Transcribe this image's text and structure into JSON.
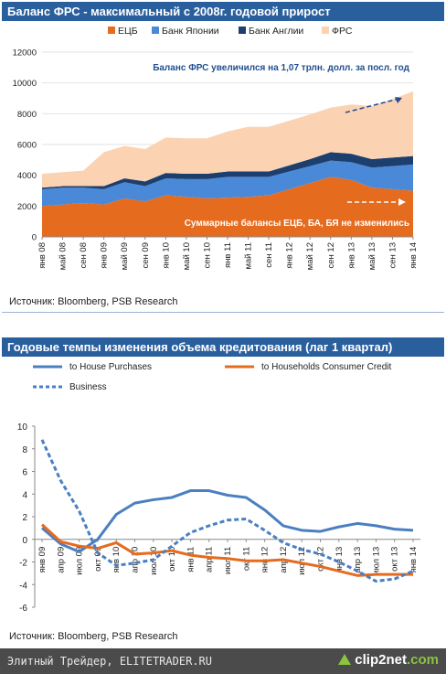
{
  "chart_data": [
    {
      "type": "area",
      "title": "Баланс ФРС - максимальный с 2008г. годовой прирост",
      "legend": [
        "ЕЦБ",
        "Банк Японии",
        "Банк Англии",
        "ФРС"
      ],
      "legend_position": "top",
      "ylim": [
        0,
        12000
      ],
      "yticks": [
        0,
        2000,
        4000,
        6000,
        8000,
        10000,
        12000
      ],
      "x_labels": [
        "янв 08",
        "май 08",
        "сен 08",
        "янв 09",
        "май 09",
        "сен 09",
        "янв 10",
        "май 10",
        "сен 10",
        "янв 11",
        "май 11",
        "сен 11",
        "янв 12",
        "май 12",
        "сен 12",
        "янв 13",
        "май 13",
        "сен 13",
        "янв 14"
      ],
      "series": [
        {
          "name": "ЕЦБ",
          "values": [
            2000,
            2100,
            2200,
            2100,
            2500,
            2300,
            2700,
            2600,
            2500,
            2550,
            2600,
            2700,
            3100,
            3500,
            3900,
            3700,
            3200,
            3100,
            3000
          ]
        },
        {
          "name": "Банк Японии",
          "values": [
            1100,
            1100,
            1000,
            1000,
            1050,
            1000,
            1100,
            1150,
            1250,
            1350,
            1300,
            1200,
            1150,
            1100,
            1050,
            1150,
            1300,
            1500,
            1700
          ]
        },
        {
          "name": "Банк Англии",
          "values": [
            100,
            100,
            100,
            200,
            250,
            300,
            350,
            350,
            350,
            350,
            350,
            350,
            400,
            450,
            550,
            550,
            550,
            550,
            550
          ]
        },
        {
          "name": "ФРС",
          "values": [
            900,
            900,
            1000,
            2200,
            2100,
            2100,
            2300,
            2300,
            2300,
            2600,
            2900,
            2900,
            2900,
            2900,
            2900,
            3200,
            3450,
            3800,
            4200
          ]
        }
      ],
      "annotations": [
        {
          "text": "Баланс ФРС увеличился на 1,07 трлн. долл. за посл. год"
        },
        {
          "text": "Суммарные балансы ЕЦБ, БА, БЯ не изменились"
        }
      ],
      "colors": {
        "ЕЦБ": "#e56b1f",
        "Банк Японии": "#4a88d8",
        "Банк Англии": "#1d3f6e",
        "ФРС": "#fbd3b3"
      },
      "source": "Источник: Bloomberg, PSB Research"
    },
    {
      "type": "line",
      "title": "Годовые темпы изменения объема кредитования (лаг 1 квартал)",
      "ylim": [
        -6,
        10
      ],
      "yticks": [
        -6,
        -4,
        -2,
        0,
        2,
        4,
        6,
        8,
        10
      ],
      "x_labels": [
        "янв 09",
        "апр 09",
        "июл 09",
        "окт 09",
        "янв 10",
        "апр 10",
        "июл 10",
        "окт 10",
        "янв 11",
        "апр 11",
        "июл 11",
        "окт 11",
        "янв 12",
        "апр 12",
        "июл 12",
        "окт 12",
        "янв 13",
        "апр 13",
        "июл 13",
        "окт 13",
        "янв 14"
      ],
      "series": [
        {
          "name": "to House Purchases",
          "style": "solid",
          "color": "#4a7fc1",
          "values": [
            1.0,
            -0.4,
            -1.1,
            0.0,
            2.2,
            3.2,
            3.5,
            3.7,
            4.3,
            4.3,
            3.9,
            3.7,
            2.6,
            1.2,
            0.8,
            0.7,
            1.1,
            1.4,
            1.2,
            0.9,
            0.8
          ]
        },
        {
          "name": "to Households  Consumer Credit",
          "style": "solid",
          "color": "#e56b1f",
          "values": [
            1.3,
            -0.2,
            -0.6,
            -0.8,
            -0.3,
            -1.3,
            -1.2,
            -1.0,
            -1.4,
            -1.6,
            -1.7,
            -1.9,
            -1.9,
            -1.8,
            -2.1,
            -2.4,
            -2.8,
            -3.2,
            -3.1,
            -3.1,
            -3.1
          ]
        },
        {
          "name": "Business",
          "style": "dashed",
          "color": "#4a7fc1",
          "values": [
            8.8,
            5.2,
            2.5,
            -1.2,
            -2.3,
            -2.1,
            -1.8,
            -0.6,
            0.6,
            1.2,
            1.7,
            1.8,
            0.8,
            -0.3,
            -0.9,
            -1.3,
            -2.0,
            -2.8,
            -3.7,
            -3.5,
            -2.8
          ]
        }
      ],
      "legend_position": "top",
      "source": "Источник: Bloomberg, PSB Research"
    }
  ],
  "footer": {
    "text": "Элитный Трейдер, ELITETRADER.RU",
    "logo_main": "clip2net",
    "logo_dot": ".com"
  }
}
